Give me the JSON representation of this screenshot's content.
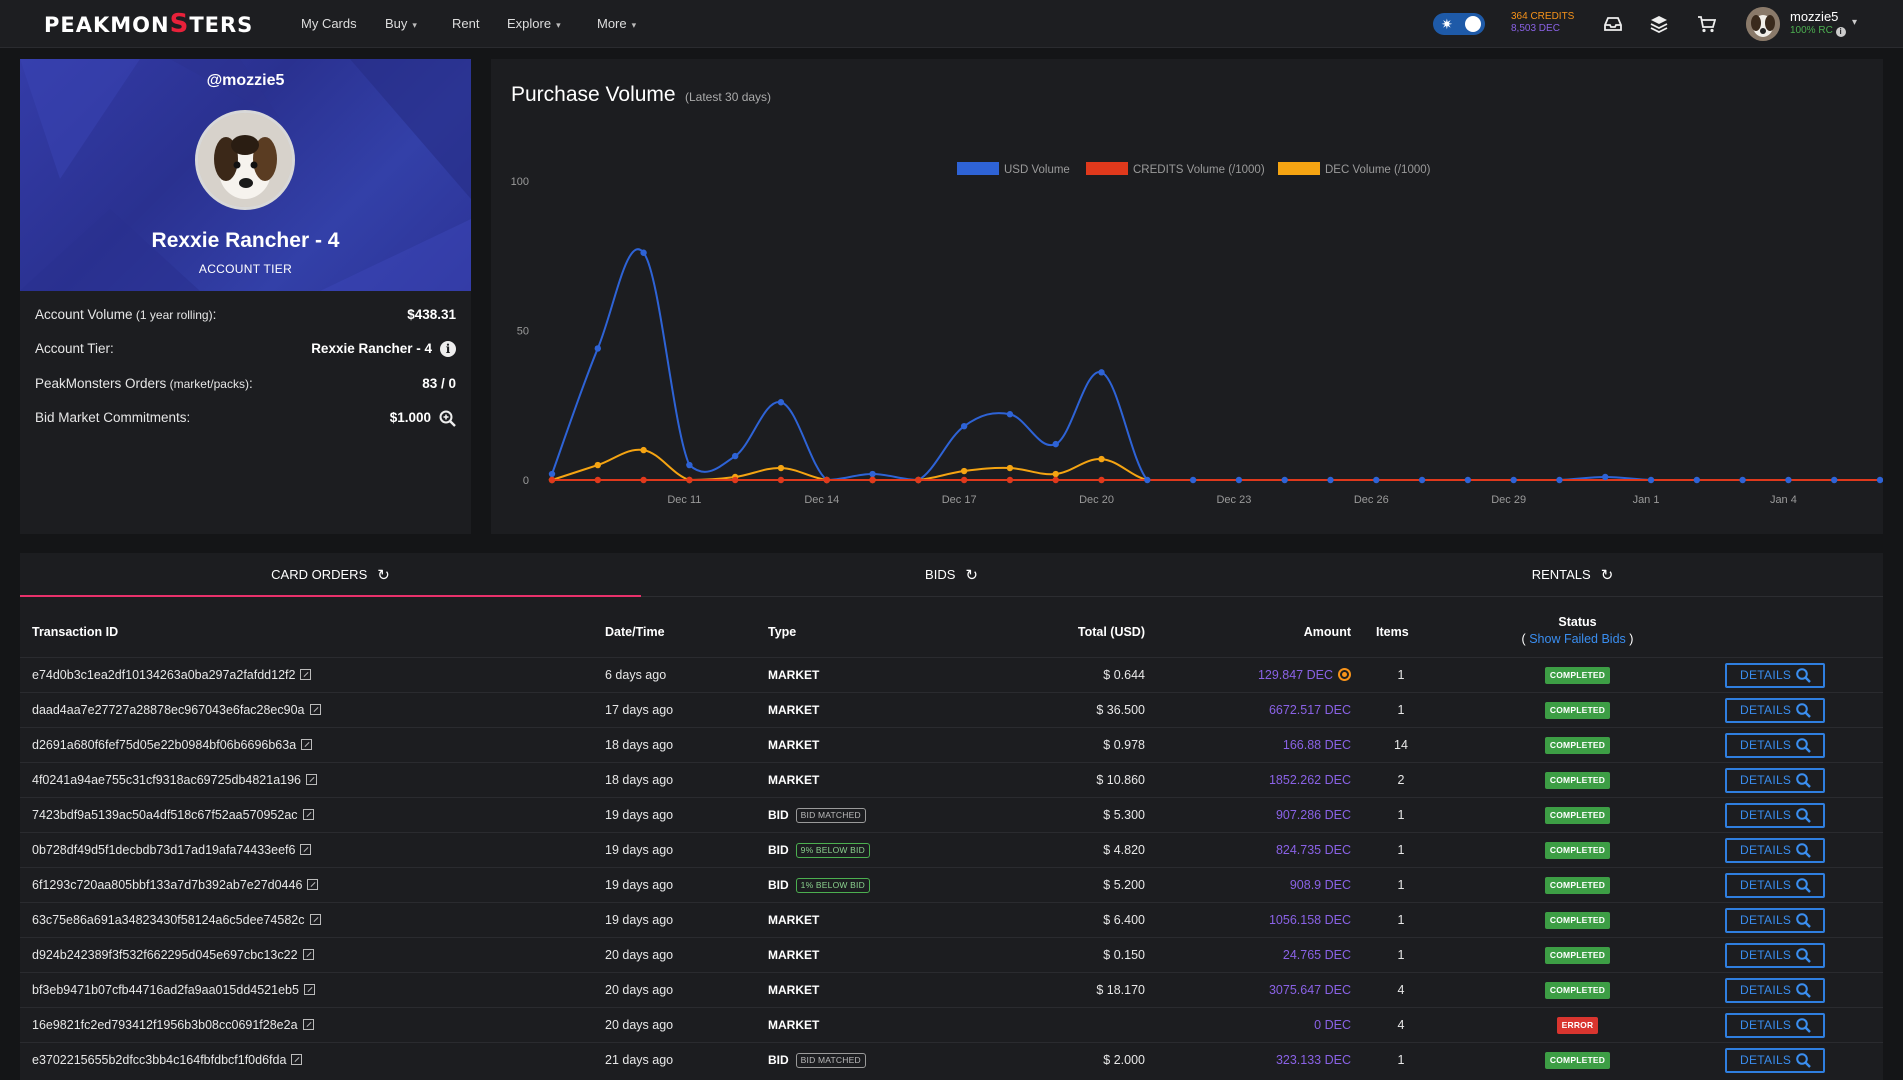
{
  "navbar": {
    "logo": "PEAKMONSTERS",
    "links": [
      {
        "label": "My Cards",
        "dropdown": false
      },
      {
        "label": "Buy",
        "dropdown": true
      },
      {
        "label": "Rent",
        "dropdown": false
      },
      {
        "label": "Explore",
        "dropdown": true
      },
      {
        "label": "More",
        "dropdown": true
      }
    ],
    "credits": "364 CREDITS",
    "dec": "8,503 DEC",
    "username": "mozzie5",
    "rc": "100% RC",
    "icons": [
      "theme-toggle-icon",
      "inbox-icon",
      "layers-icon",
      "cart-icon"
    ]
  },
  "profile": {
    "handle": "@mozzie5",
    "tier_name": "Rexxie Rancher - 4",
    "tier_label": "ACCOUNT TIER",
    "stats": [
      {
        "label": "Account Volume",
        "sub": " (1 year rolling)",
        "suffix": ":",
        "value": "$438.31"
      },
      {
        "label": "Account Tier:",
        "sub": "",
        "suffix": "",
        "value": "Rexxie Rancher - 4",
        "icon": "info-icon"
      },
      {
        "label": "PeakMonsters Orders",
        "sub": " (market/packs)",
        "suffix": ":",
        "value": "83 / 0"
      },
      {
        "label": "Bid Market Commitments:",
        "sub": "",
        "suffix": "",
        "value": "$1.000",
        "icon": "zoom-icon"
      }
    ]
  },
  "chart": {
    "title": "Purchase Volume",
    "subtitle": "(Latest 30 days)"
  },
  "chart_data": {
    "type": "line",
    "yticks": [
      0,
      50,
      100
    ],
    "ylim": [
      0,
      100
    ],
    "x_tick_labels": [
      "Dec 11",
      "Dec 14",
      "Dec 17",
      "Dec 20",
      "Dec 23",
      "Dec 26",
      "Dec 29",
      "Jan 1",
      "Jan 4"
    ],
    "x_tick_positions": [
      3,
      6,
      9,
      12,
      15,
      18,
      21,
      24,
      27
    ],
    "legend_position": "top-center",
    "series": [
      {
        "name": "USD Volume",
        "color": "#2e63d6",
        "values": [
          2,
          44,
          76,
          5,
          8,
          26,
          0,
          2,
          0,
          18,
          22,
          12,
          36,
          0,
          0,
          0,
          0,
          0,
          0,
          0,
          0,
          0,
          0,
          1,
          0,
          0,
          0,
          0,
          0,
          0
        ]
      },
      {
        "name": "CREDITS Volume (/1000)",
        "color": "#e0391c",
        "values": [
          0,
          0,
          0,
          0,
          0,
          0,
          0,
          0,
          0,
          0,
          0,
          0,
          0,
          0,
          0,
          0,
          0,
          0,
          0,
          0,
          0,
          0,
          0,
          0,
          0,
          0,
          0,
          0,
          0,
          0
        ]
      },
      {
        "name": "DEC Volume (/1000)",
        "color": "#f5a412",
        "values": [
          0,
          5,
          10,
          0,
          1,
          4,
          0,
          0,
          0,
          3,
          4,
          2,
          7,
          0,
          0,
          0,
          0,
          0,
          0,
          0,
          0,
          0,
          0,
          0,
          0,
          0,
          0,
          0,
          0,
          0
        ]
      }
    ]
  },
  "tabs": [
    {
      "label": "CARD ORDERS",
      "active": true
    },
    {
      "label": "BIDS",
      "active": false
    },
    {
      "label": "RENTALS",
      "active": false
    }
  ],
  "table": {
    "headers": {
      "txid": "Transaction ID",
      "date": "Date/Time",
      "type": "Type",
      "total": "Total (USD)",
      "amount": "Amount",
      "items": "Items",
      "status": "Status",
      "status_link": "Show Failed Bids",
      "paren_open": "(",
      "paren_close": ")"
    },
    "details_label": "DETAILS",
    "rows": [
      {
        "txid": "e74d0b3c1ea2df10134263a0ba297a2fafdd12f2",
        "date": "6 days ago",
        "type": "MARKET",
        "tag": "",
        "total": "$ 0.644",
        "amount": "129.847 DEC",
        "coin": true,
        "items": "1",
        "status": "COMPLETED"
      },
      {
        "txid": "daad4aa7e27727a28878ec967043e6fac28ec90a",
        "date": "17 days ago",
        "type": "MARKET",
        "tag": "",
        "total": "$ 36.500",
        "amount": "6672.517 DEC",
        "items": "1",
        "status": "COMPLETED"
      },
      {
        "txid": "d2691a680f6fef75d05e22b0984bf06b6696b63a",
        "date": "18 days ago",
        "type": "MARKET",
        "tag": "",
        "total": "$ 0.978",
        "amount": "166.88 DEC",
        "items": "14",
        "status": "COMPLETED"
      },
      {
        "txid": "4f0241a94ae755c31cf9318ac69725db4821a196",
        "date": "18 days ago",
        "type": "MARKET",
        "tag": "",
        "total": "$ 10.860",
        "amount": "1852.262 DEC",
        "items": "2",
        "status": "COMPLETED"
      },
      {
        "txid": "7423bdf9a5139ac50a4df518c67f52aa570952ac",
        "date": "19 days ago",
        "type": "BID",
        "tag": "BID MATCHED",
        "tag_color": "grey",
        "total": "$ 5.300",
        "amount": "907.286 DEC",
        "items": "1",
        "status": "COMPLETED"
      },
      {
        "txid": "0b728df49d5f1decbdb73d17ad19afa74433eef6",
        "date": "19 days ago",
        "type": "BID",
        "tag": "9% BELOW BID",
        "tag_color": "green",
        "total": "$ 4.820",
        "amount": "824.735 DEC",
        "items": "1",
        "status": "COMPLETED"
      },
      {
        "txid": "6f1293c720aa805bbf133a7d7b392ab7e27d0446",
        "date": "19 days ago",
        "type": "BID",
        "tag": "1% BELOW BID",
        "tag_color": "green",
        "total": "$ 5.200",
        "amount": "908.9 DEC",
        "items": "1",
        "status": "COMPLETED"
      },
      {
        "txid": "63c75e86a691a34823430f58124a6c5dee74582c",
        "date": "19 days ago",
        "type": "MARKET",
        "tag": "",
        "total": "$ 6.400",
        "amount": "1056.158 DEC",
        "items": "1",
        "status": "COMPLETED"
      },
      {
        "txid": "d924b242389f3f532f662295d045e697cbc13c22",
        "date": "20 days ago",
        "type": "MARKET",
        "tag": "",
        "total": "$ 0.150",
        "amount": "24.765 DEC",
        "items": "1",
        "status": "COMPLETED"
      },
      {
        "txid": "bf3eb9471b07cfb44716ad2fa9aa015dd4521eb5",
        "date": "20 days ago",
        "type": "MARKET",
        "tag": "",
        "total": "$ 18.170",
        "amount": "3075.647 DEC",
        "items": "4",
        "status": "COMPLETED"
      },
      {
        "txid": "16e9821fc2ed793412f1956b3b08cc0691f28e2a",
        "date": "20 days ago",
        "type": "MARKET",
        "tag": "",
        "total": "",
        "amount": "0 DEC",
        "items": "4",
        "status": "ERROR"
      },
      {
        "txid": "e3702215655b2dfcc3bb4c164fbfdbcf1f0d6fda",
        "date": "21 days ago",
        "type": "BID",
        "tag": "BID MATCHED",
        "tag_color": "grey",
        "total": "$ 2.000",
        "amount": "323.133 DEC",
        "items": "1",
        "status": "COMPLETED"
      }
    ]
  },
  "colors": {
    "accent_pink": "#e8316b",
    "profile_bg": "#2f379c",
    "status_completed": "#3d9e45",
    "status_error": "#d9352f",
    "link_blue": "#3a8ef0",
    "dec_purple": "#8a62e6",
    "credits_orange": "#f7931a"
  }
}
